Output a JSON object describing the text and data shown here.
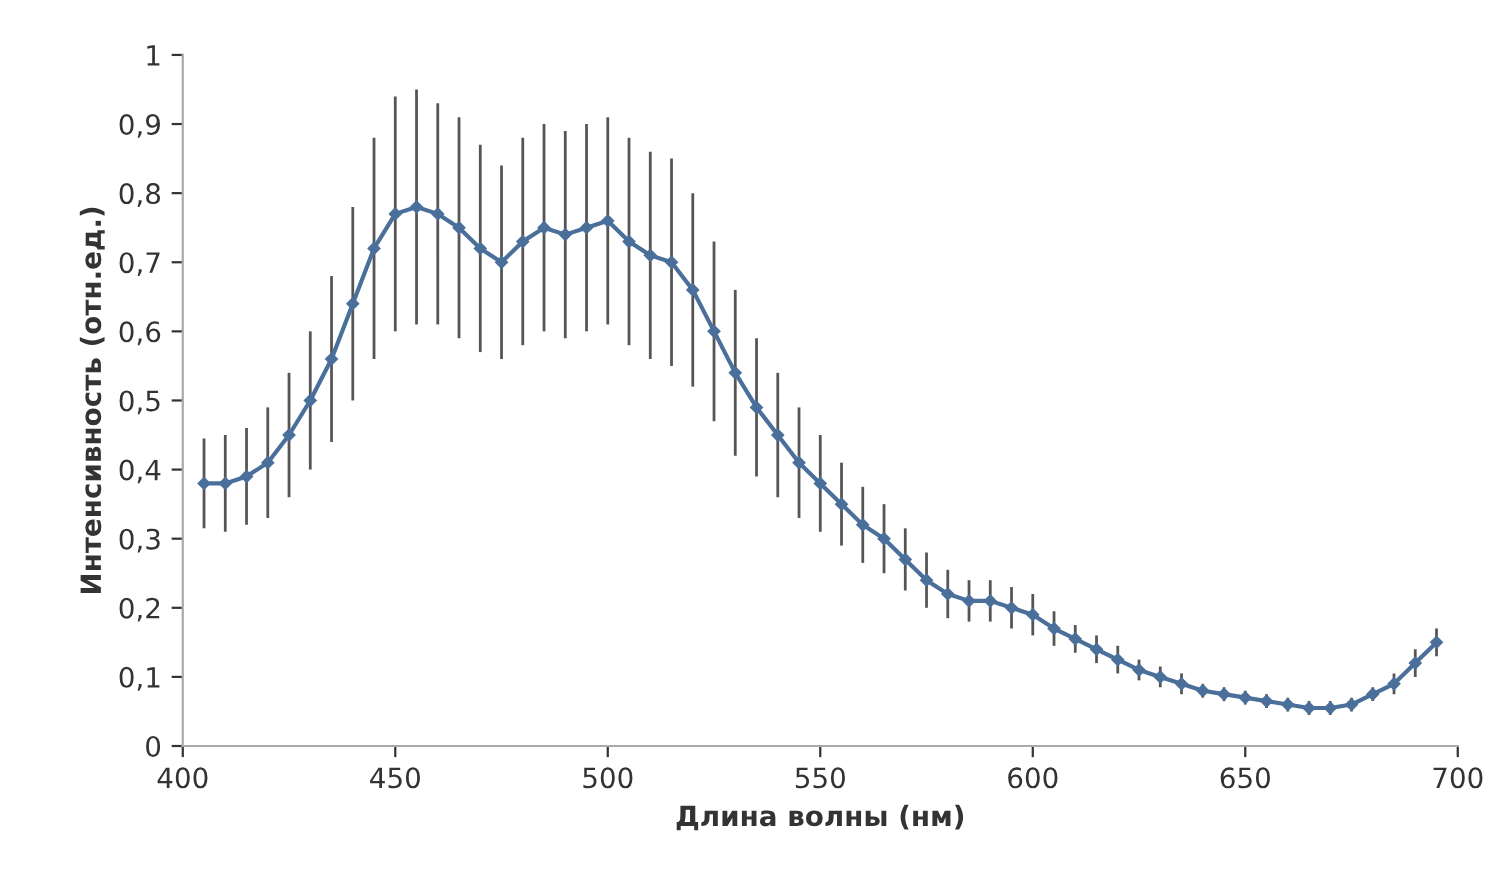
{
  "chart_data": {
    "type": "line",
    "xlabel": "Длина волны (нм)",
    "ylabel": "Интенсивность (отн.ед.)",
    "x": [
      405,
      410,
      415,
      420,
      425,
      430,
      435,
      440,
      445,
      450,
      455,
      460,
      465,
      470,
      475,
      480,
      485,
      490,
      495,
      500,
      505,
      510,
      515,
      520,
      525,
      530,
      535,
      540,
      545,
      550,
      555,
      560,
      565,
      570,
      575,
      580,
      585,
      590,
      595,
      600,
      605,
      610,
      615,
      620,
      625,
      630,
      635,
      640,
      645,
      650,
      655,
      660,
      665,
      670,
      675,
      680,
      685,
      690,
      695
    ],
    "series": [
      {
        "color": "#4a6f9a",
        "values": [
          0.38,
          0.38,
          0.39,
          0.41,
          0.45,
          0.5,
          0.56,
          0.64,
          0.72,
          0.77,
          0.78,
          0.77,
          0.75,
          0.72,
          0.7,
          0.73,
          0.75,
          0.74,
          0.75,
          0.76,
          0.73,
          0.71,
          0.7,
          0.66,
          0.6,
          0.54,
          0.49,
          0.45,
          0.41,
          0.38,
          0.35,
          0.32,
          0.3,
          0.27,
          0.24,
          0.22,
          0.21,
          0.21,
          0.2,
          0.19,
          0.17,
          0.155,
          0.14,
          0.125,
          0.11,
          0.1,
          0.09,
          0.08,
          0.075,
          0.07,
          0.065,
          0.06,
          0.055,
          0.055,
          0.06,
          0.075,
          0.09,
          0.12,
          0.15
        ],
        "errors": [
          0.065,
          0.07,
          0.07,
          0.08,
          0.09,
          0.1,
          0.12,
          0.14,
          0.16,
          0.17,
          0.17,
          0.16,
          0.16,
          0.15,
          0.14,
          0.15,
          0.15,
          0.15,
          0.15,
          0.15,
          0.15,
          0.15,
          0.15,
          0.14,
          0.13,
          0.12,
          0.1,
          0.09,
          0.08,
          0.07,
          0.06,
          0.055,
          0.05,
          0.045,
          0.04,
          0.035,
          0.03,
          0.03,
          0.03,
          0.03,
          0.025,
          0.02,
          0.02,
          0.02,
          0.015,
          0.015,
          0.015,
          0.01,
          0.01,
          0.01,
          0.01,
          0.01,
          0.01,
          0.01,
          0.01,
          0.01,
          0.015,
          0.02,
          0.02
        ]
      }
    ],
    "marker": "diamond",
    "xlim": [
      400,
      700
    ],
    "xticks": [
      400,
      450,
      500,
      550,
      600,
      650,
      700
    ],
    "ylim": [
      0,
      1
    ],
    "yticks": [
      0,
      {
        "value": 0.1,
        "label": "0,1"
      },
      {
        "value": 0.2,
        "label": "0,2"
      },
      {
        "value": 0.3,
        "label": "0,3"
      },
      {
        "value": 0.4,
        "label": "0,4"
      },
      {
        "value": 0.5,
        "label": "0,5"
      },
      {
        "value": 0.6,
        "label": "0,6"
      },
      {
        "value": 0.7,
        "label": "0,7"
      },
      {
        "value": 0.8,
        "label": "0,8"
      },
      {
        "value": 0.9,
        "label": "0,9"
      },
      1
    ],
    "grid": false
  }
}
